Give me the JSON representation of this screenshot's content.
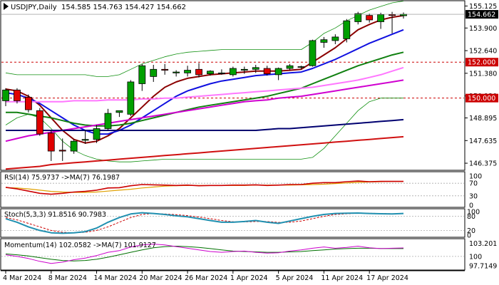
{
  "chart_data": {
    "type": "candlestick",
    "symbol_header": "USDJPY,Daily",
    "ohlc_header": "154.585 154.763 154.427 154.662",
    "last_price_label": "154.662",
    "colors": {
      "up": "#00a000",
      "down": "#e00000",
      "ma_fast": "#8b0000",
      "ma_mid": "#1010e0",
      "ma_green": "#108010",
      "ma_pink": "#ff77ff",
      "ma_magenta": "#d000d0",
      "ma_navy": "#000070",
      "ma_red": "#d01010",
      "bollinger": "#109010",
      "level_line": "#cc0000",
      "price_label_bg": "#000000",
      "level_label_bg": "#cc0000",
      "rsi": "#cc0000",
      "rsi_ma": "#e0a000",
      "stoch_main": "#2090b0",
      "stoch_signal": "#cc0000",
      "momentum": "#cc00cc",
      "momentum_ma": "#007000"
    },
    "y_axis_ticks": [
      "155.125",
      "153.900",
      "152.640",
      "151.380",
      "150.120",
      "148.895",
      "147.635",
      "146.375"
    ],
    "price_range": [
      146.1,
      155.3
    ],
    "horizontal_levels": [
      {
        "value": 152.0,
        "label": "152.000"
      },
      {
        "value": 150.0,
        "label": "150.000"
      }
    ],
    "x_labels": [
      "4 Mar 2024",
      "8 Mar 2024",
      "14 Mar 2024",
      "20 Mar 2024",
      "26 Mar 2024",
      "1 Apr 2024",
      "5 Apr 2024",
      "11 Apr 2024",
      "17 Apr 2024"
    ],
    "candles": [
      {
        "o": 149.85,
        "h": 150.55,
        "l": 149.55,
        "c": 150.45
      },
      {
        "o": 150.45,
        "h": 150.55,
        "l": 149.7,
        "c": 149.85
      },
      {
        "o": 150.05,
        "h": 150.2,
        "l": 149.2,
        "c": 149.35
      },
      {
        "o": 149.3,
        "h": 149.45,
        "l": 147.9,
        "c": 148.0
      },
      {
        "o": 148.05,
        "h": 148.2,
        "l": 146.5,
        "c": 147.05
      },
      {
        "o": 147.1,
        "h": 147.75,
        "l": 146.5,
        "c": 147.05
      },
      {
        "o": 147.05,
        "h": 147.7,
        "l": 146.9,
        "c": 147.6
      },
      {
        "o": 147.65,
        "h": 148.2,
        "l": 147.45,
        "c": 147.7
      },
      {
        "o": 147.7,
        "h": 148.5,
        "l": 147.5,
        "c": 148.3
      },
      {
        "o": 148.3,
        "h": 149.4,
        "l": 148.2,
        "c": 149.15
      },
      {
        "o": 149.2,
        "h": 149.3,
        "l": 148.95,
        "c": 149.3
      },
      {
        "o": 149.1,
        "h": 151.0,
        "l": 149.0,
        "c": 150.9
      },
      {
        "o": 150.8,
        "h": 151.9,
        "l": 150.4,
        "c": 151.8
      },
      {
        "o": 151.2,
        "h": 151.85,
        "l": 150.9,
        "c": 151.6
      },
      {
        "o": 151.6,
        "h": 151.9,
        "l": 151.3,
        "c": 151.55
      },
      {
        "o": 151.4,
        "h": 151.55,
        "l": 151.2,
        "c": 151.45
      },
      {
        "o": 151.4,
        "h": 151.8,
        "l": 151.2,
        "c": 151.55
      },
      {
        "o": 151.6,
        "h": 151.95,
        "l": 151.15,
        "c": 151.3
      },
      {
        "o": 151.35,
        "h": 151.55,
        "l": 151.25,
        "c": 151.5
      },
      {
        "o": 151.4,
        "h": 151.6,
        "l": 151.3,
        "c": 151.4
      },
      {
        "o": 151.3,
        "h": 151.75,
        "l": 151.2,
        "c": 151.65
      },
      {
        "o": 151.55,
        "h": 151.75,
        "l": 151.35,
        "c": 151.6
      },
      {
        "o": 151.6,
        "h": 151.85,
        "l": 151.4,
        "c": 151.7
      },
      {
        "o": 151.65,
        "h": 151.8,
        "l": 151.25,
        "c": 151.35
      },
      {
        "o": 151.3,
        "h": 151.7,
        "l": 151.0,
        "c": 151.65
      },
      {
        "o": 151.65,
        "h": 151.9,
        "l": 151.55,
        "c": 151.8
      },
      {
        "o": 151.75,
        "h": 151.8,
        "l": 151.6,
        "c": 151.75
      },
      {
        "o": 151.8,
        "h": 153.25,
        "l": 151.75,
        "c": 153.2
      },
      {
        "o": 153.1,
        "h": 153.4,
        "l": 152.8,
        "c": 153.25
      },
      {
        "o": 153.2,
        "h": 153.55,
        "l": 153.0,
        "c": 153.4
      },
      {
        "o": 153.3,
        "h": 154.4,
        "l": 153.1,
        "c": 154.3
      },
      {
        "o": 154.25,
        "h": 154.8,
        "l": 154.1,
        "c": 154.7
      },
      {
        "o": 154.6,
        "h": 154.7,
        "l": 154.2,
        "c": 154.35
      },
      {
        "o": 154.25,
        "h": 154.75,
        "l": 153.85,
        "c": 154.65
      },
      {
        "o": 154.65,
        "h": 154.8,
        "l": 153.6,
        "c": 154.6
      },
      {
        "o": 154.585,
        "h": 154.763,
        "l": 154.427,
        "c": 154.662
      }
    ],
    "moving_averages": [
      {
        "name": "ma_fast",
        "values": [
          150.5,
          150.4,
          150.1,
          149.6,
          148.9,
          148.2,
          147.7,
          147.5,
          147.6,
          147.9,
          148.3,
          148.9,
          149.5,
          150.1,
          150.6,
          150.9,
          151.1,
          151.2,
          151.3,
          151.35,
          151.4,
          151.45,
          151.5,
          151.5,
          151.5,
          151.55,
          151.6,
          152.0,
          152.4,
          152.8,
          153.3,
          153.8,
          154.1,
          154.35,
          154.5,
          154.6
        ]
      },
      {
        "name": "ma_mid",
        "values": [
          150.3,
          150.2,
          150.0,
          149.7,
          149.3,
          148.9,
          148.5,
          148.2,
          148.0,
          148.0,
          148.2,
          148.5,
          148.9,
          149.3,
          149.7,
          150.1,
          150.4,
          150.6,
          150.8,
          150.95,
          151.05,
          151.15,
          151.25,
          151.3,
          151.35,
          151.4,
          151.45,
          151.65,
          151.9,
          152.15,
          152.45,
          152.75,
          153.05,
          153.3,
          153.55,
          153.8
        ]
      },
      {
        "name": "ma_green",
        "values": [
          149.2,
          149.2,
          149.1,
          149.0,
          148.9,
          148.75,
          148.6,
          148.5,
          148.45,
          148.45,
          148.5,
          148.6,
          148.75,
          148.9,
          149.05,
          149.2,
          149.35,
          149.5,
          149.6,
          149.7,
          149.8,
          149.9,
          150.0,
          150.1,
          150.25,
          150.4,
          150.55,
          150.8,
          151.05,
          151.3,
          151.55,
          151.8,
          152.0,
          152.2,
          152.4,
          152.55
        ]
      },
      {
        "name": "ma_pink",
        "values": [
          149.8,
          149.8,
          149.8,
          149.8,
          149.8,
          149.8,
          149.85,
          149.85,
          149.85,
          149.9,
          149.9,
          149.9,
          149.95,
          149.95,
          150.0,
          150.0,
          150.05,
          150.1,
          150.15,
          150.2,
          150.25,
          150.3,
          150.35,
          150.4,
          150.45,
          150.5,
          150.55,
          150.6,
          150.7,
          150.8,
          150.9,
          151.0,
          151.15,
          151.3,
          151.5,
          151.7
        ]
      },
      {
        "name": "ma_magenta",
        "values": [
          147.6,
          147.75,
          147.9,
          148.0,
          148.1,
          148.2,
          148.3,
          148.4,
          148.5,
          148.6,
          148.7,
          148.8,
          148.9,
          149.0,
          149.1,
          149.2,
          149.3,
          149.4,
          149.5,
          149.6,
          149.7,
          149.8,
          149.85,
          149.9,
          150.0,
          150.05,
          150.1,
          150.2,
          150.3,
          150.4,
          150.5,
          150.6,
          150.7,
          150.8,
          150.9,
          151.0
        ]
      },
      {
        "name": "ma_navy",
        "values": [
          148.2,
          148.2,
          148.2,
          148.2,
          148.2,
          148.2,
          148.2,
          148.2,
          148.2,
          148.2,
          148.2,
          148.2,
          148.2,
          148.2,
          148.2,
          148.2,
          148.2,
          148.2,
          148.2,
          148.2,
          148.2,
          148.2,
          148.2,
          148.25,
          148.3,
          148.3,
          148.35,
          148.4,
          148.45,
          148.5,
          148.55,
          148.6,
          148.65,
          148.7,
          148.75,
          148.8
        ]
      },
      {
        "name": "ma_red",
        "values": [
          146.05,
          146.1,
          146.15,
          146.2,
          146.3,
          146.35,
          146.4,
          146.45,
          146.5,
          146.55,
          146.6,
          146.65,
          146.7,
          146.75,
          146.8,
          146.85,
          146.9,
          146.95,
          147.0,
          147.05,
          147.1,
          147.15,
          147.2,
          147.25,
          147.3,
          147.35,
          147.4,
          147.45,
          147.5,
          147.55,
          147.6,
          147.65,
          147.7,
          147.75,
          147.8,
          147.85
        ]
      },
      {
        "name": "bollinger_upper",
        "values": [
          151.4,
          151.3,
          151.3,
          151.3,
          151.3,
          151.3,
          151.3,
          151.3,
          151.2,
          151.2,
          151.3,
          151.6,
          151.9,
          152.1,
          152.3,
          152.45,
          152.55,
          152.6,
          152.65,
          152.7,
          152.7,
          152.7,
          152.7,
          152.7,
          152.7,
          152.7,
          152.7,
          153.1,
          153.6,
          153.9,
          154.3,
          154.6,
          154.9,
          155.1,
          155.3,
          155.4
        ]
      },
      {
        "name": "bollinger_lower",
        "values": [
          148.5,
          148.9,
          149.1,
          148.9,
          148.3,
          147.6,
          147.1,
          146.8,
          146.6,
          146.5,
          146.45,
          146.45,
          146.5,
          146.55,
          146.6,
          146.6,
          146.6,
          146.6,
          146.6,
          146.6,
          146.6,
          146.6,
          146.6,
          146.6,
          146.6,
          146.6,
          146.6,
          146.7,
          147.2,
          147.9,
          148.6,
          149.3,
          149.8,
          150.0,
          150.0,
          150.0
        ]
      }
    ],
    "rsi": {
      "header": "RSI(14) 75.9737  ->MA(7) 76.1987",
      "levels": [
        70,
        30
      ],
      "ticks": [
        "100",
        "70",
        "30",
        "0"
      ],
      "values": [
        57,
        52,
        45,
        38,
        35,
        38,
        42,
        44,
        48,
        55,
        56,
        62,
        66,
        65,
        64,
        63,
        64,
        62,
        63,
        63,
        64,
        64,
        65,
        63,
        64,
        66,
        66,
        70,
        72,
        72,
        75,
        77,
        75,
        76,
        76,
        76
      ],
      "ma_values": [
        56,
        55,
        52,
        48,
        44,
        42,
        41,
        41,
        42,
        45,
        48,
        51,
        55,
        58,
        61,
        62,
        63,
        63,
        63,
        63,
        63,
        63,
        64,
        64,
        64,
        64,
        65,
        66,
        67,
        69,
        71,
        73,
        74,
        75,
        76,
        76
      ]
    },
    "stochastic": {
      "header": "Stoch(5,3,3) 91.8516 90.7983",
      "ticks": [
        "100",
        "80",
        "20",
        "0"
      ],
      "main": [
        70,
        55,
        35,
        20,
        10,
        8,
        10,
        15,
        30,
        55,
        75,
        90,
        95,
        92,
        88,
        82,
        78,
        70,
        62,
        55,
        55,
        58,
        62,
        55,
        50,
        60,
        70,
        80,
        88,
        92,
        93,
        94,
        92,
        91,
        90,
        92
      ],
      "signal": [
        75,
        65,
        50,
        35,
        20,
        12,
        10,
        12,
        20,
        35,
        55,
        75,
        88,
        92,
        90,
        87,
        83,
        77,
        70,
        62,
        57,
        56,
        58,
        58,
        54,
        55,
        60,
        70,
        80,
        88,
        91,
        93,
        93,
        92,
        91,
        91
      ]
    },
    "momentum": {
      "header": "Momentum(14) 102.0582  ->MA(7) 101.9127",
      "ticks": [
        "103.201",
        "100",
        "97.7149"
      ],
      "range": [
        97.2,
        103.8
      ],
      "values": [
        100.4,
        100.0,
        99.5,
        98.8,
        98.3,
        98.6,
        99.2,
        99.6,
        100.2,
        101.0,
        101.4,
        102.3,
        102.8,
        103.0,
        102.8,
        102.4,
        102.0,
        101.6,
        101.2,
        101.0,
        101.2,
        101.3,
        101.0,
        100.8,
        100.9,
        101.3,
        101.6,
        102.0,
        102.3,
        102.0,
        102.2,
        102.5,
        102.1,
        101.9,
        102.0,
        102.06
      ],
      "ma_values": [
        100.6,
        100.4,
        100.1,
        99.7,
        99.3,
        99.0,
        98.9,
        99.0,
        99.3,
        99.8,
        100.4,
        101.0,
        101.6,
        102.1,
        102.4,
        102.5,
        102.4,
        102.2,
        101.9,
        101.6,
        101.3,
        101.2,
        101.1,
        101.0,
        101.0,
        101.1,
        101.2,
        101.4,
        101.6,
        101.8,
        101.9,
        102.0,
        102.0,
        101.95,
        101.9,
        101.91
      ]
    }
  }
}
